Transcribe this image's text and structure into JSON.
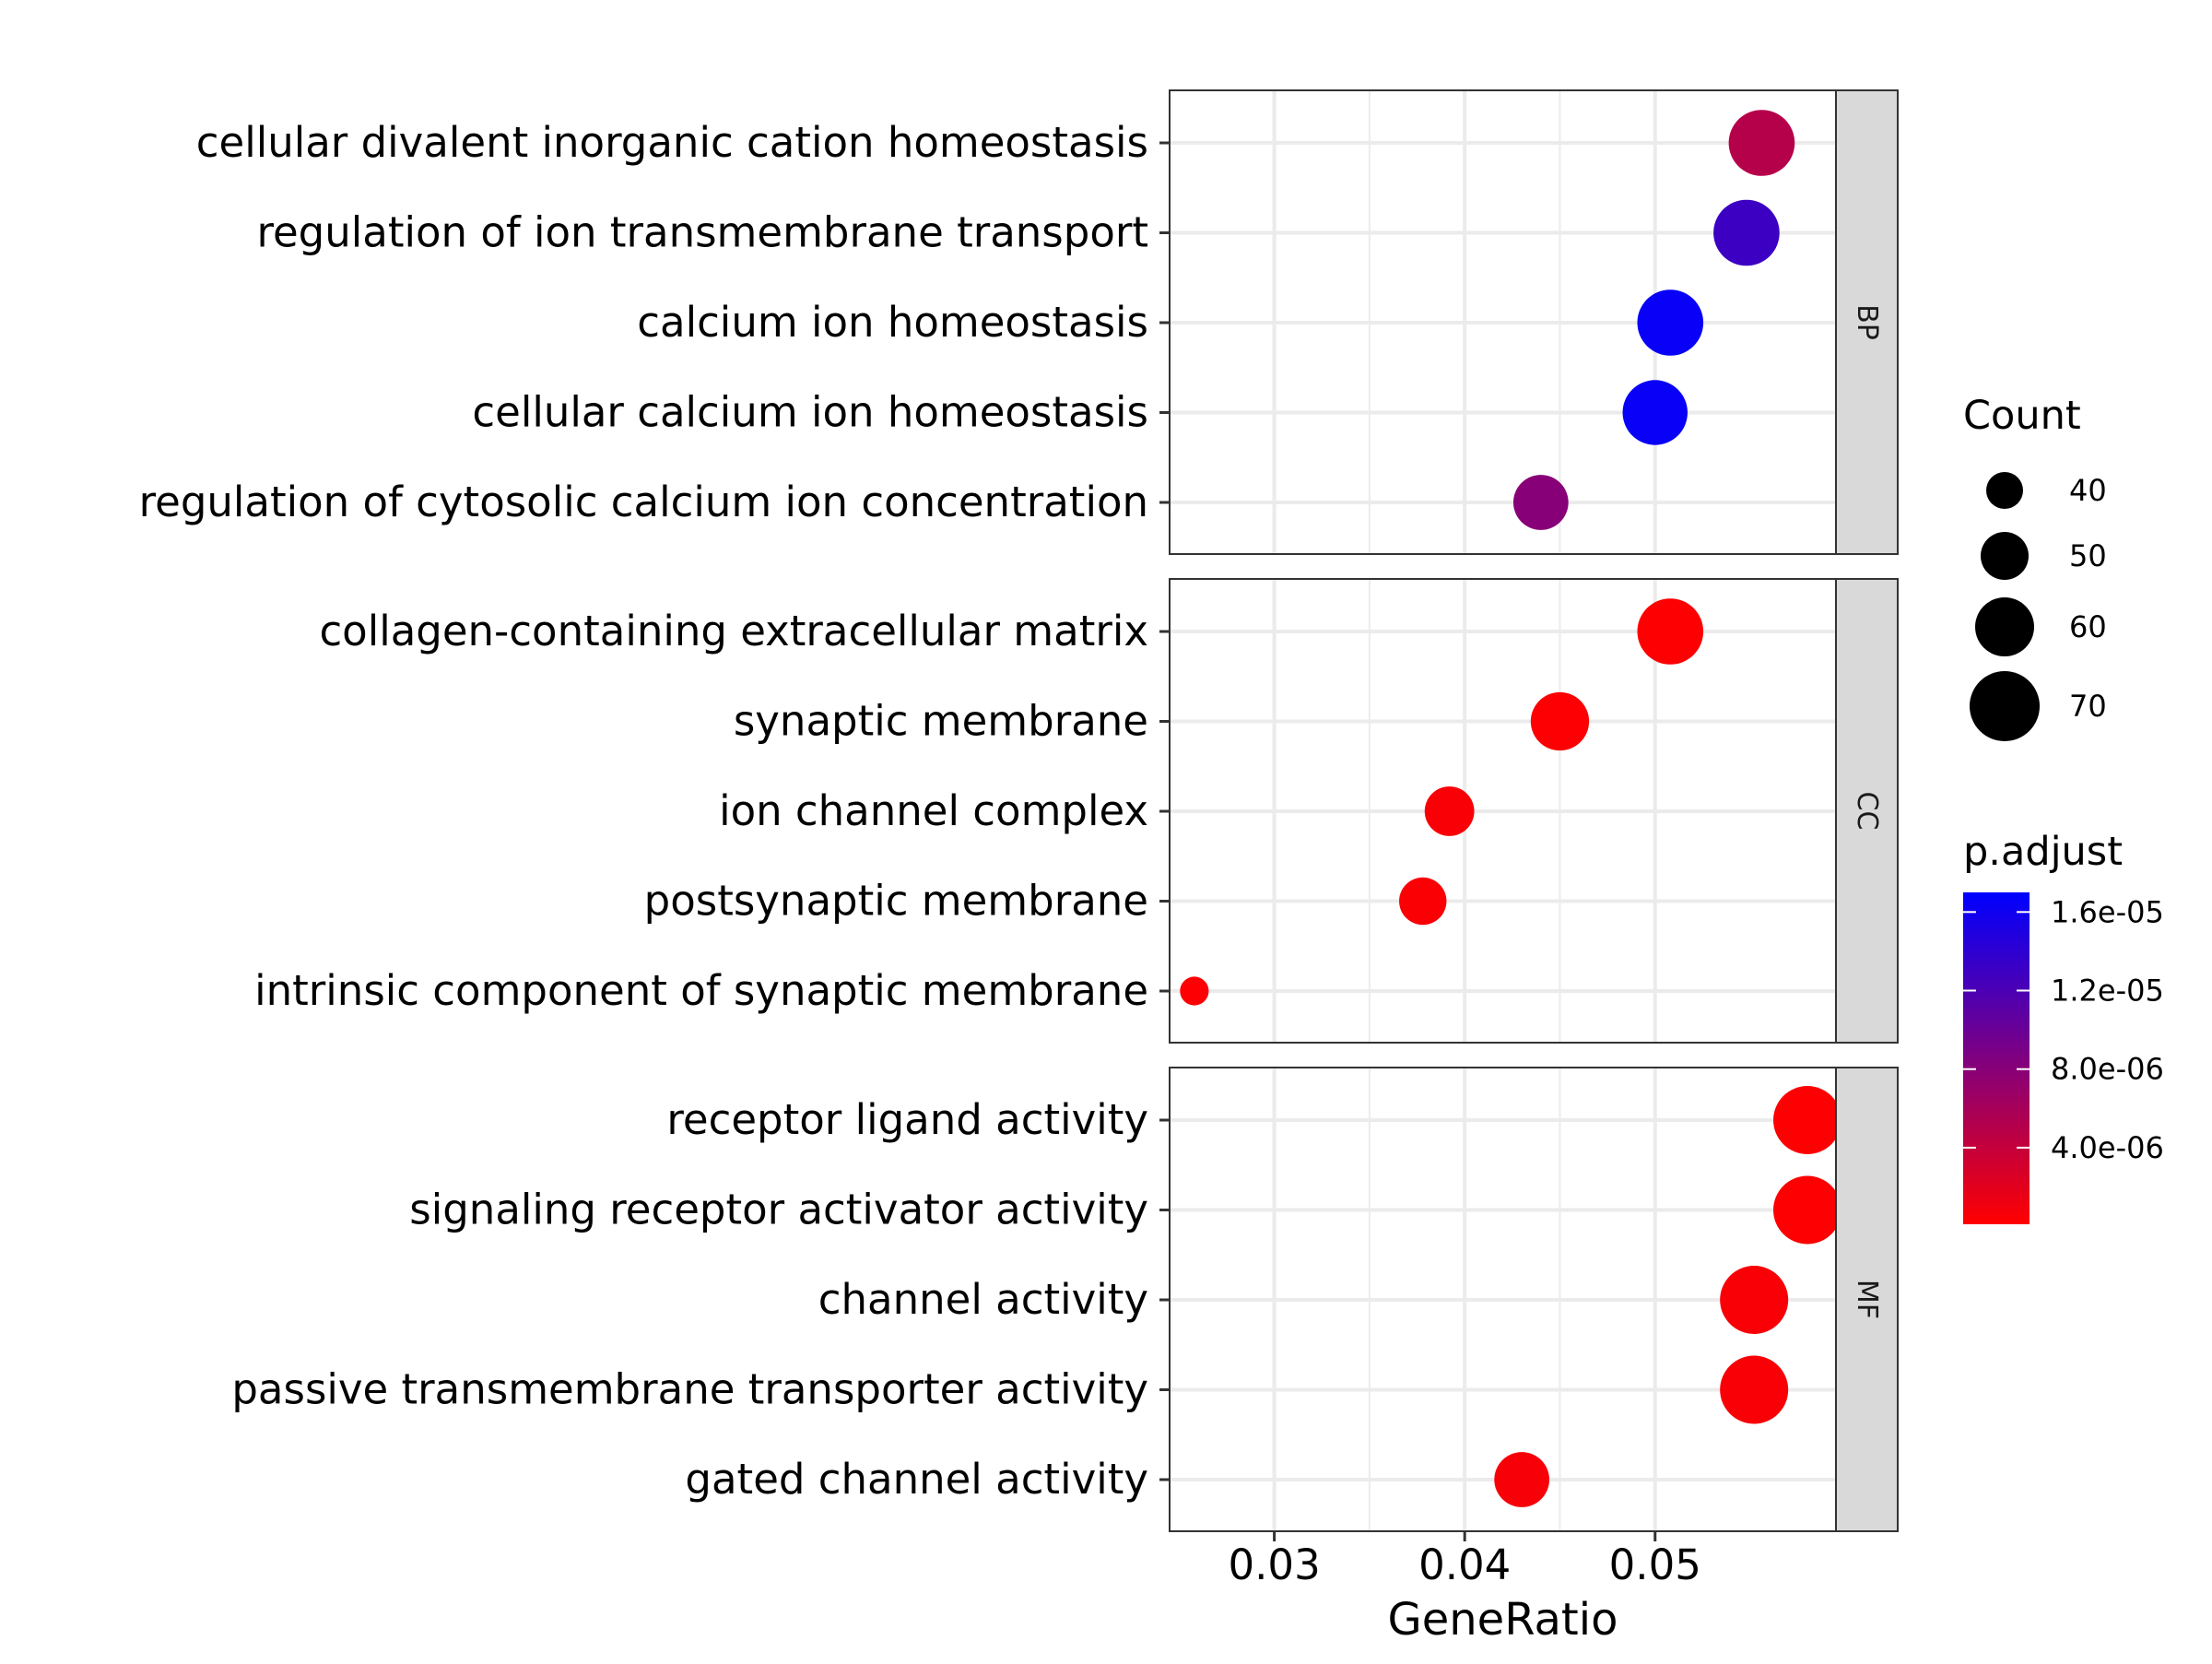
{
  "chart_data": {
    "type": "scatter",
    "xlabel": "GeneRatio",
    "xlim": [
      0.0245,
      0.0595
    ],
    "x_ticks": [
      0.03,
      0.04,
      0.05
    ],
    "x_tick_labels": [
      "0.03",
      "0.04",
      "0.05"
    ],
    "grid": true,
    "size_legend": {
      "title": "Count",
      "values": [
        40,
        50,
        60,
        70
      ],
      "labels": [
        "40",
        "50",
        "60",
        "70"
      ]
    },
    "color_legend": {
      "title": "p.adjust",
      "low_color": "#ff0000",
      "high_color": "#0000ff",
      "range": [
        1e-07,
        1.7e-05
      ],
      "ticks": [
        4e-06,
        8e-06,
        1.2e-05,
        1.6e-05
      ],
      "tick_labels": [
        "4.0e-06",
        "8.0e-06",
        "1.2e-05",
        "1.6e-05"
      ],
      "placement": "right"
    },
    "panels": [
      {
        "strip": "BP",
        "terms": [
          {
            "label": "cellular divalent inorganic cation homeostasis",
            "x": 0.0556,
            "count": 70,
            "p_adjust": 5e-06
          },
          {
            "label": "regulation of ion transmembrane transport",
            "x": 0.0548,
            "count": 70,
            "p_adjust": 1.3e-05
          },
          {
            "label": "calcium ion homeostasis",
            "x": 0.0508,
            "count": 70,
            "p_adjust": 1.65e-05
          },
          {
            "label": "cellular calcium ion homeostasis",
            "x": 0.05,
            "count": 69,
            "p_adjust": 1.65e-05
          },
          {
            "label": "regulation of cytosolic calcium ion concentration",
            "x": 0.044,
            "count": 60,
            "p_adjust": 8e-06
          }
        ]
      },
      {
        "strip": "CC",
        "terms": [
          {
            "label": "collagen-containing extracellular matrix",
            "x": 0.0508,
            "count": 70,
            "p_adjust": 2e-07
          },
          {
            "label": "synaptic membrane",
            "x": 0.045,
            "count": 63,
            "p_adjust": 3e-07
          },
          {
            "label": "ion channel complex",
            "x": 0.0392,
            "count": 55,
            "p_adjust": 5e-07
          },
          {
            "label": "postsynaptic membrane",
            "x": 0.0378,
            "count": 53,
            "p_adjust": 4e-07
          },
          {
            "label": "intrinsic component of synaptic membrane",
            "x": 0.0258,
            "count": 36,
            "p_adjust": 3e-07
          }
        ]
      },
      {
        "strip": "MF",
        "terms": [
          {
            "label": "receptor ligand activity",
            "x": 0.058,
            "count": 72,
            "p_adjust": 2e-07
          },
          {
            "label": "signaling receptor activator activity",
            "x": 0.058,
            "count": 72,
            "p_adjust": 2e-07
          },
          {
            "label": "channel activity",
            "x": 0.0552,
            "count": 72,
            "p_adjust": 5e-07
          },
          {
            "label": "passive transmembrane transporter activity",
            "x": 0.0552,
            "count": 72,
            "p_adjust": 5e-07
          },
          {
            "label": "gated channel activity",
            "x": 0.043,
            "count": 60,
            "p_adjust": 6e-07
          }
        ]
      }
    ]
  }
}
